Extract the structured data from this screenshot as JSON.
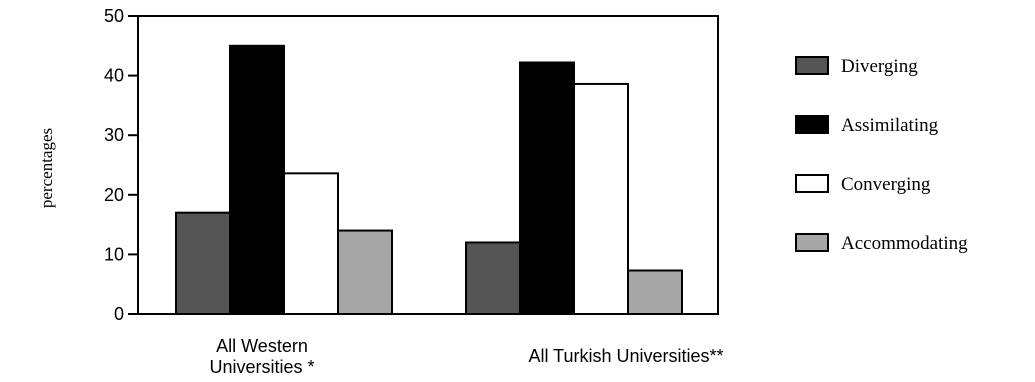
{
  "chart_data": {
    "type": "bar",
    "title": "",
    "xlabel": "",
    "ylabel": "percentages",
    "ylim": [
      0,
      50
    ],
    "yticks": [
      0,
      10,
      20,
      30,
      40,
      50
    ],
    "grid": false,
    "legend_position": "right",
    "categories": [
      {
        "lines": [
          "All Western",
          "Universities *"
        ]
      },
      {
        "lines": [
          "All Turkish Universities**"
        ]
      }
    ],
    "series": [
      {
        "name": "Diverging",
        "color": "#555555",
        "values": [
          17,
          12
        ]
      },
      {
        "name": "Assimilating",
        "color": "#000000",
        "values": [
          45,
          42.2
        ]
      },
      {
        "name": "Converging",
        "color": "#ffffff",
        "values": [
          23.6,
          38.6
        ]
      },
      {
        "name": "Accommodating",
        "color": "#a6a6a6",
        "values": [
          14,
          7.3
        ]
      }
    ]
  }
}
